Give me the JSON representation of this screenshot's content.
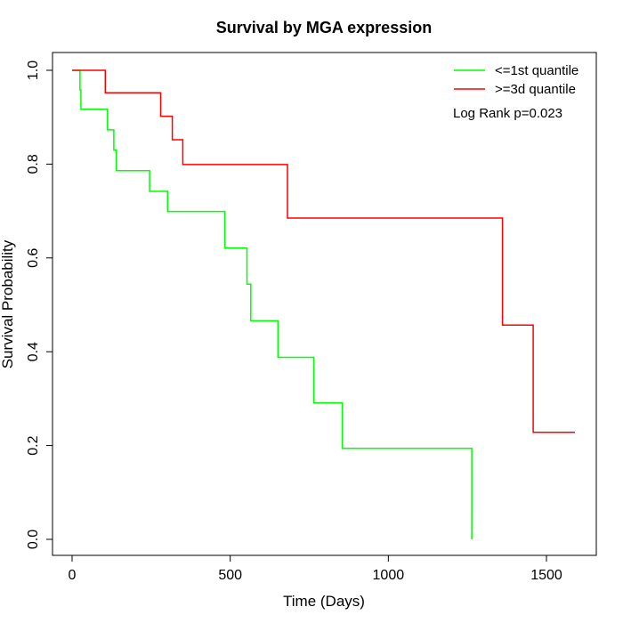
{
  "chart_data": {
    "type": "line",
    "title": "Survival by MGA expression",
    "xlabel": "Time (Days)",
    "ylabel": "Survival Probability",
    "xlim": [
      0,
      1600
    ],
    "ylim": [
      0,
      1.0
    ],
    "x_ticks": [
      "0",
      "500",
      "1000",
      "1500"
    ],
    "y_ticks": [
      "0.0",
      "0.2",
      "0.4",
      "0.6",
      "0.8",
      "1.0"
    ],
    "grid": false,
    "legend_position": "top-right",
    "annotation": "Log Rank p=0.023",
    "series": [
      {
        "name": "<=1st quantile",
        "color": "#00ff00",
        "step": true,
        "points": [
          [
            0,
            1.0
          ],
          [
            25,
            1.0
          ],
          [
            25,
            0.958
          ],
          [
            28,
            0.958
          ],
          [
            28,
            0.917
          ],
          [
            112,
            0.917
          ],
          [
            112,
            0.873
          ],
          [
            132,
            0.873
          ],
          [
            132,
            0.83
          ],
          [
            140,
            0.83
          ],
          [
            140,
            0.786
          ],
          [
            245,
            0.786
          ],
          [
            245,
            0.742
          ],
          [
            302,
            0.742
          ],
          [
            302,
            0.699
          ],
          [
            483,
            0.699
          ],
          [
            483,
            0.621
          ],
          [
            553,
            0.621
          ],
          [
            553,
            0.544
          ],
          [
            565,
            0.544
          ],
          [
            565,
            0.466
          ],
          [
            651,
            0.466
          ],
          [
            651,
            0.388
          ],
          [
            764,
            0.388
          ],
          [
            764,
            0.291
          ],
          [
            854,
            0.291
          ],
          [
            854,
            0.194
          ],
          [
            1264,
            0.194
          ],
          [
            1264,
            0.0
          ]
        ]
      },
      {
        "name": ">=3d quantile",
        "color": "#ff0000",
        "step": true,
        "points": [
          [
            0,
            1.0
          ],
          [
            105,
            1.0
          ],
          [
            105,
            0.952
          ],
          [
            280,
            0.952
          ],
          [
            280,
            0.902
          ],
          [
            317,
            0.902
          ],
          [
            317,
            0.852
          ],
          [
            350,
            0.852
          ],
          [
            350,
            0.799
          ],
          [
            681,
            0.799
          ],
          [
            681,
            0.685
          ],
          [
            1361,
            0.685
          ],
          [
            1361,
            0.457
          ],
          [
            1458,
            0.457
          ],
          [
            1458,
            0.228
          ],
          [
            1590,
            0.228
          ]
        ]
      }
    ]
  }
}
